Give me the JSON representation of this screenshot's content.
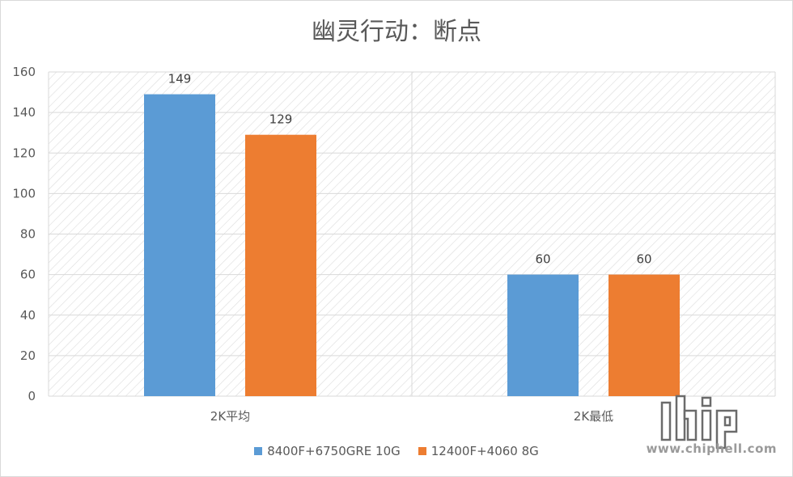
{
  "chart_data": {
    "type": "bar",
    "title": "幽灵行动：断点",
    "categories": [
      "2K平均",
      "2K最低"
    ],
    "series": [
      {
        "name": "8400F+6750GRE 10G",
        "values": [
          149,
          60
        ],
        "color": "#5b9bd5"
      },
      {
        "name": "12400F+4060 8G",
        "values": [
          129,
          60
        ],
        "color": "#ed7d31"
      }
    ],
    "ylim": [
      0,
      160
    ],
    "yticks": [
      0,
      20,
      40,
      60,
      80,
      100,
      120,
      140,
      160
    ],
    "grid": true,
    "legend": "bottom"
  },
  "watermark": {
    "logo": "chip hell",
    "url": "www.chiphell.com"
  }
}
